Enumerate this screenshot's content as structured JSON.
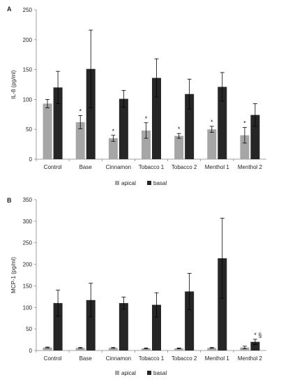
{
  "chart_data": [
    {
      "type": "bar",
      "panel_label": "A",
      "ylabel": "IL-8 (pg/ml)",
      "ylim": [
        0,
        250
      ],
      "yticks": [
        0,
        50,
        100,
        150,
        200,
        250
      ],
      "categories": [
        "Control",
        "Base",
        "Cinnamon",
        "Tobacco 1",
        "Tobacco 2",
        "Menthol 1",
        "Menthol 2"
      ],
      "series": [
        {
          "name": "apical",
          "color": "#a6a6a6",
          "values": [
            93,
            62,
            35,
            48,
            39,
            50,
            40
          ],
          "errors": [
            7,
            11,
            5,
            13,
            4,
            5,
            13
          ],
          "markers": [
            "",
            "*",
            "*",
            "*",
            "*",
            "*",
            "*"
          ]
        },
        {
          "name": "basal",
          "color": "#262626",
          "values": [
            120,
            151,
            101,
            136,
            109,
            121,
            74
          ],
          "errors": [
            27,
            65,
            14,
            32,
            25,
            24,
            19
          ],
          "markers": [
            "",
            "",
            "",
            "",
            "",
            "",
            ""
          ]
        }
      ],
      "legend": "bottom-center",
      "grid": false
    },
    {
      "type": "bar",
      "panel_label": "B",
      "ylabel": "MCP-1 (pg/ml)",
      "ylim": [
        0,
        350
      ],
      "yticks": [
        0,
        50,
        100,
        150,
        200,
        250,
        300,
        350
      ],
      "categories": [
        "Control",
        "Base",
        "Cinnamon",
        "Tobacco 1",
        "Tobacco 2",
        "Menthol 1",
        "Menthol 2"
      ],
      "series": [
        {
          "name": "apical",
          "color": "#a6a6a6",
          "values": [
            7,
            6,
            6,
            5,
            5,
            6,
            7
          ],
          "errors": [
            1,
            1,
            1,
            1,
            1,
            1,
            3
          ],
          "markers": [
            "",
            "",
            "",
            "",
            "",
            "",
            ""
          ]
        },
        {
          "name": "basal",
          "color": "#262626",
          "values": [
            110,
            117,
            110,
            106,
            137,
            214,
            20
          ],
          "errors": [
            30,
            39,
            14,
            28,
            42,
            93,
            6
          ],
          "markers": [
            "",
            "",
            "",
            "",
            "",
            "",
            "* §"
          ]
        }
      ],
      "legend": "bottom-center",
      "grid": false
    }
  ]
}
